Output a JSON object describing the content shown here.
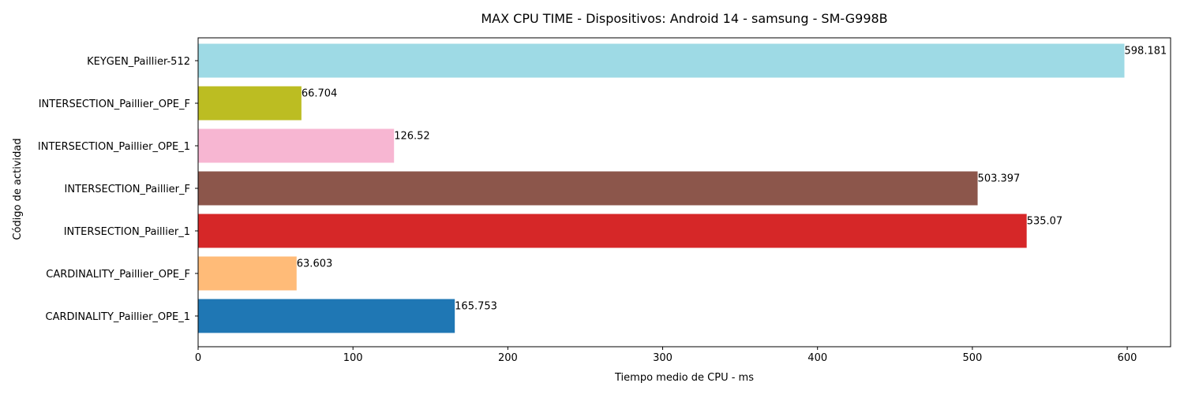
{
  "chart_data": {
    "type": "bar",
    "orientation": "horizontal",
    "title": "MAX CPU TIME - Dispositivos: Android 14 - samsung - SM-G998B",
    "xlabel": "Tiempo medio de CPU - ms",
    "ylabel": "Código de actividad",
    "xlim": [
      0,
      628
    ],
    "xticks": [
      0,
      100,
      200,
      300,
      400,
      500,
      600
    ],
    "grid": false,
    "bars": [
      {
        "category": "KEYGEN_Paillier-512",
        "value": 598.181,
        "label": "598.181",
        "color": "#9edae5"
      },
      {
        "category": "INTERSECTION_Paillier_OPE_F",
        "value": 66.704,
        "label": "66.704",
        "color": "#bcbd22"
      },
      {
        "category": "INTERSECTION_Paillier_OPE_1",
        "value": 126.52,
        "label": "126.52",
        "color": "#f7b6d2"
      },
      {
        "category": "INTERSECTION_Paillier_F",
        "value": 503.397,
        "label": "503.397",
        "color": "#8c564b"
      },
      {
        "category": "INTERSECTION_Paillier_1",
        "value": 535.07,
        "label": "535.07",
        "color": "#d62728"
      },
      {
        "category": "CARDINALITY_Paillier_OPE_F",
        "value": 63.603,
        "label": "63.603",
        "color": "#ffbb78"
      },
      {
        "category": "CARDINALITY_Paillier_OPE_1",
        "value": 165.753,
        "label": "165.753",
        "color": "#1f77b4"
      }
    ]
  }
}
